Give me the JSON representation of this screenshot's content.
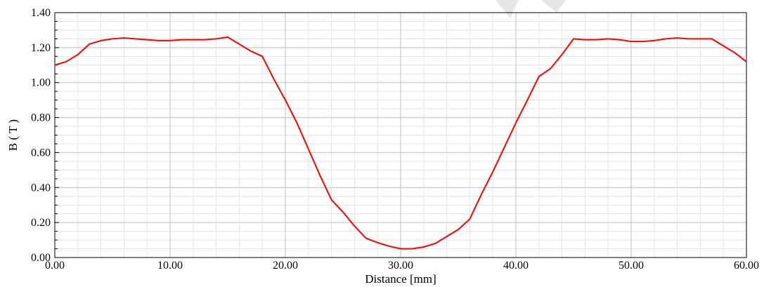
{
  "chart_data": {
    "type": "line",
    "title": "",
    "xlabel": "Distance [mm]",
    "ylabel": "B ( T )",
    "xlim": [
      0,
      60
    ],
    "ylim": [
      0,
      1.4
    ],
    "x_ticks": [
      "0.00",
      "10.00",
      "20.00",
      "30.00",
      "40.00",
      "50.00",
      "60.00"
    ],
    "y_ticks": [
      "0.00",
      "0.20",
      "0.40",
      "0.60",
      "0.80",
      "1.00",
      "1.20",
      "1.40"
    ],
    "grid": true,
    "legend": "none",
    "series": [
      {
        "color": "#ff0000",
        "x": [
          0,
          1,
          2,
          3,
          4,
          5,
          6,
          7,
          8,
          9,
          10,
          11,
          12,
          13,
          14,
          15,
          16,
          17,
          18,
          19,
          20,
          21,
          22,
          23,
          24,
          25,
          26,
          27,
          28,
          29,
          30,
          31,
          32,
          33,
          34,
          35,
          36,
          37,
          38,
          39,
          40,
          41,
          42,
          43,
          44,
          45,
          46,
          47,
          48,
          49,
          50,
          51,
          52,
          53,
          54,
          55,
          56,
          57,
          58,
          59,
          60
        ],
        "y": [
          1.1,
          1.12,
          1.16,
          1.22,
          1.24,
          1.25,
          1.255,
          1.25,
          1.245,
          1.24,
          1.24,
          1.245,
          1.245,
          1.245,
          1.25,
          1.26,
          1.22,
          1.18,
          1.15,
          1.02,
          0.9,
          0.77,
          0.62,
          0.47,
          0.33,
          0.26,
          0.18,
          0.11,
          0.085,
          0.065,
          0.05,
          0.05,
          0.06,
          0.08,
          0.12,
          0.16,
          0.22,
          0.36,
          0.49,
          0.63,
          0.77,
          0.9,
          1.035,
          1.08,
          1.16,
          1.25,
          1.245,
          1.245,
          1.25,
          1.245,
          1.235,
          1.235,
          1.24,
          1.25,
          1.255,
          1.25,
          1.25,
          1.25,
          1.21,
          1.17,
          1.12
        ]
      }
    ]
  }
}
